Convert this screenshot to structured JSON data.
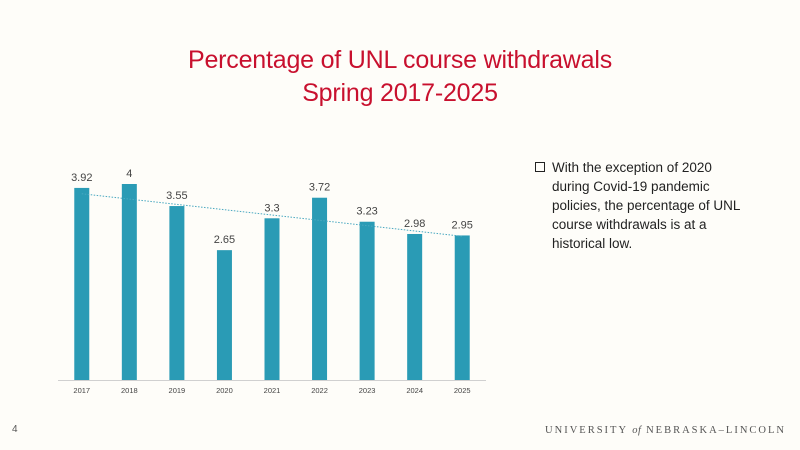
{
  "slide": {
    "title_line1": "Percentage of UNL course withdrawals",
    "title_line2": "Spring 2017-2025",
    "page_number": "4",
    "bullet_text": "With the exception of 2020 during Covid-19 pandemic policies, the percentage of UNL course withdrawals is at a historical low.",
    "logo_part1": "UNIVERSITY",
    "logo_part2": "of",
    "logo_part3": "NEBRASKA–LINCOLN"
  },
  "colors": {
    "title": "#c8102e",
    "bar": "#2a9bb5",
    "trendline": "#4aa8c0"
  },
  "chart_data": {
    "type": "bar",
    "categories": [
      "2017",
      "2018",
      "2019",
      "2020",
      "2021",
      "2022",
      "2023",
      "2024",
      "2025"
    ],
    "values": [
      3.92,
      4,
      3.55,
      2.65,
      3.3,
      3.72,
      3.23,
      2.98,
      2.95
    ],
    "data_labels": [
      "3.92",
      "4",
      "3.55",
      "2.65",
      "3.3",
      "3.72",
      "3.23",
      "2.98",
      "2.95"
    ],
    "title": "",
    "xlabel": "",
    "ylabel": "",
    "ylim": [
      0,
      4
    ],
    "trendline": "linear, dotted",
    "grid": false,
    "legend": "none"
  }
}
